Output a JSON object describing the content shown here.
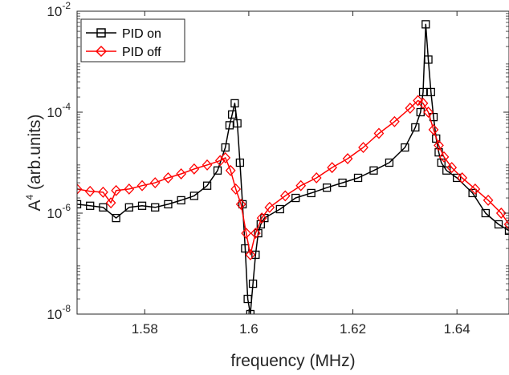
{
  "chart_data": {
    "type": "line",
    "xlabel": "frequency (MHz)",
    "ylabel_base": "A",
    "ylabel_exp": "4",
    "ylabel_rest": " (arb.units)",
    "xlim": [
      1.567,
      1.65
    ],
    "ylim": [
      1e-08,
      0.01
    ],
    "yscale": "log",
    "x_ticks": [
      1.58,
      1.6,
      1.62,
      1.64
    ],
    "x_tick_labels": [
      "1.58",
      "1.6",
      "1.62",
      "1.64"
    ],
    "y_ticks": [
      1e-08,
      1e-06,
      0.0001,
      0.01
    ],
    "y_tick_labels": [
      {
        "base": "10",
        "exp": "-8"
      },
      {
        "base": "10",
        "exp": "-6"
      },
      {
        "base": "10",
        "exp": "-4"
      },
      {
        "base": "10",
        "exp": "-2"
      }
    ],
    "grid": false,
    "legend_position": "top-left",
    "series": [
      {
        "name": "PID on",
        "color": "#000000",
        "marker": "square",
        "x": [
          1.567,
          1.5695,
          1.572,
          1.5745,
          1.577,
          1.5795,
          1.582,
          1.5845,
          1.587,
          1.5895,
          1.592,
          1.594,
          1.5955,
          1.5963,
          1.5968,
          1.5973,
          1.5978,
          1.5983,
          1.5988,
          1.5993,
          1.5998,
          1.6003,
          1.6008,
          1.6013,
          1.6018,
          1.6023,
          1.603,
          1.606,
          1.609,
          1.612,
          1.615,
          1.618,
          1.621,
          1.624,
          1.627,
          1.63,
          1.632,
          1.633,
          1.6335,
          1.634,
          1.6345,
          1.635,
          1.6355,
          1.636,
          1.6365,
          1.637,
          1.638,
          1.64,
          1.643,
          1.6455,
          1.648,
          1.65
        ],
        "y": [
          1.5e-06,
          1.4e-06,
          1.3e-06,
          8e-07,
          1.3e-06,
          1.4e-06,
          1.3e-06,
          1.5e-06,
          1.8e-06,
          2.2e-06,
          3.5e-06,
          7e-06,
          2e-05,
          5.5e-05,
          9e-05,
          0.00015,
          6e-05,
          1e-05,
          1.5e-06,
          2e-07,
          2e-08,
          1e-08,
          4e-08,
          1.5e-07,
          4e-07,
          6e-07,
          8e-07,
          1.2e-06,
          2e-06,
          2.5e-06,
          3.2e-06,
          4e-06,
          5e-06,
          7e-06,
          1e-05,
          2e-05,
          5e-05,
          0.0001,
          0.00025,
          0.0055,
          0.0011,
          0.00025,
          8e-05,
          3e-05,
          1.6e-05,
          1e-05,
          7e-06,
          5e-06,
          2.5e-06,
          1e-06,
          6e-07,
          4.5e-07
        ]
      },
      {
        "name": "PID off",
        "color": "#ff0000",
        "marker": "diamond",
        "x": [
          1.567,
          1.5695,
          1.572,
          1.5735,
          1.5745,
          1.577,
          1.5795,
          1.582,
          1.5845,
          1.587,
          1.5895,
          1.592,
          1.5945,
          1.5955,
          1.5965,
          1.5975,
          1.5985,
          1.5995,
          1.6003,
          1.6013,
          1.6025,
          1.604,
          1.607,
          1.61,
          1.613,
          1.616,
          1.619,
          1.622,
          1.625,
          1.628,
          1.631,
          1.6325,
          1.6335,
          1.6345,
          1.6355,
          1.6365,
          1.6375,
          1.639,
          1.641,
          1.6435,
          1.646,
          1.6485,
          1.65
        ],
        "y": [
          3e-06,
          2.7e-06,
          2.6e-06,
          1.6e-06,
          2.8e-06,
          3e-06,
          3.5e-06,
          4e-06,
          5e-06,
          6e-06,
          7.5e-06,
          9e-06,
          1.1e-05,
          1.25e-05,
          7e-06,
          3e-06,
          1.5e-06,
          4e-07,
          1.5e-07,
          4e-07,
          8e-07,
          1.3e-06,
          2.2e-06,
          3.5e-06,
          5e-06,
          8e-06,
          1.2e-05,
          2e-05,
          3.8e-05,
          6.5e-05,
          0.00012,
          0.00017,
          0.00015,
          0.0001,
          4.5e-05,
          2.2e-05,
          1.3e-05,
          8e-06,
          5e-06,
          3e-06,
          1.8e-06,
          1e-06,
          6e-07
        ]
      }
    ]
  }
}
